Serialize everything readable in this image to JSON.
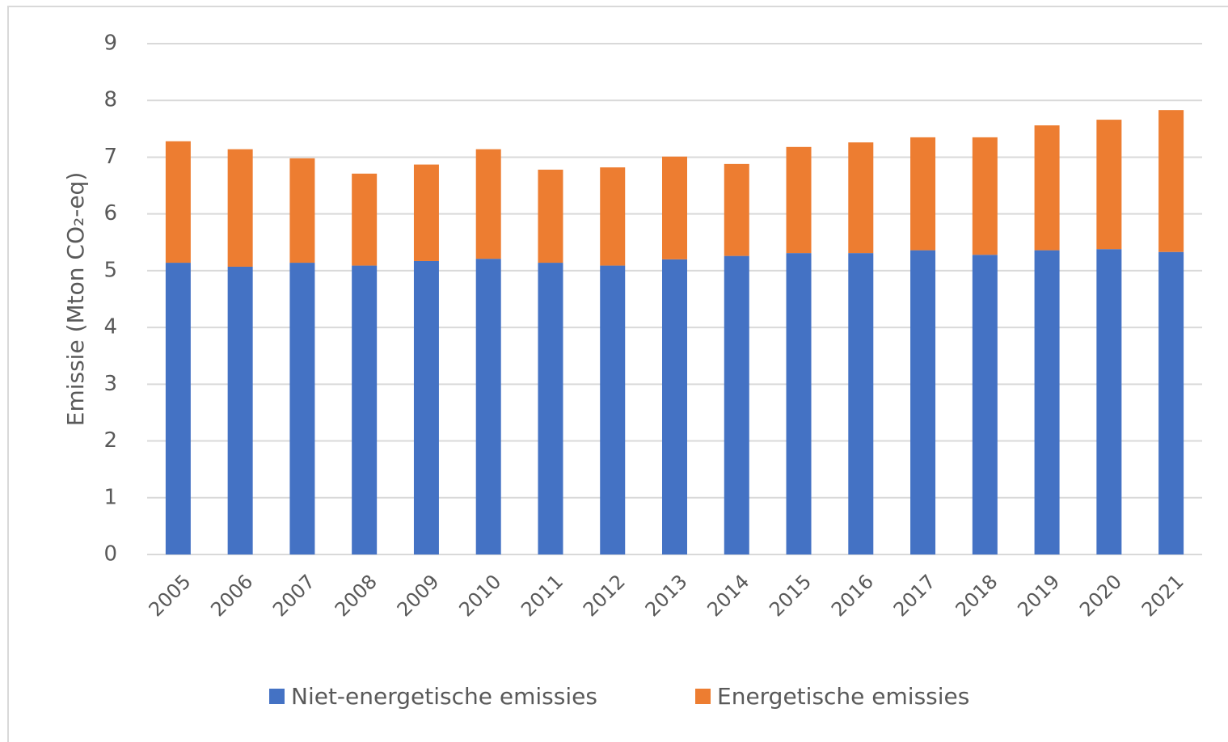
{
  "chart_data": {
    "type": "stacked_bar",
    "y_label": "Emissie (Mton CO₂-eq)",
    "categories": [
      "2005",
      "2006",
      "2007",
      "2008",
      "2009",
      "2010",
      "2011",
      "2012",
      "2013",
      "2014",
      "2015",
      "2016",
      "2017",
      "2018",
      "2019",
      "2020",
      "2021"
    ],
    "series": [
      {
        "name": "Niet-energetische emissies",
        "color": "#4472c4",
        "values": [
          5.14,
          5.07,
          5.14,
          5.09,
          5.17,
          5.21,
          5.14,
          5.09,
          5.2,
          5.26,
          5.31,
          5.31,
          5.36,
          5.28,
          5.36,
          5.38,
          5.33
        ]
      },
      {
        "name": "Energetische emissies",
        "color": "#ed7d31",
        "values": [
          2.14,
          2.07,
          1.84,
          1.62,
          1.7,
          1.93,
          1.64,
          1.73,
          1.81,
          1.62,
          1.87,
          1.95,
          1.99,
          2.07,
          2.2,
          2.28,
          2.5
        ]
      }
    ],
    "ylim": [
      0,
      9
    ],
    "yticks": [
      0,
      1,
      2,
      3,
      4,
      5,
      6,
      7,
      8,
      9
    ],
    "grid": true,
    "legend": "bottom"
  }
}
